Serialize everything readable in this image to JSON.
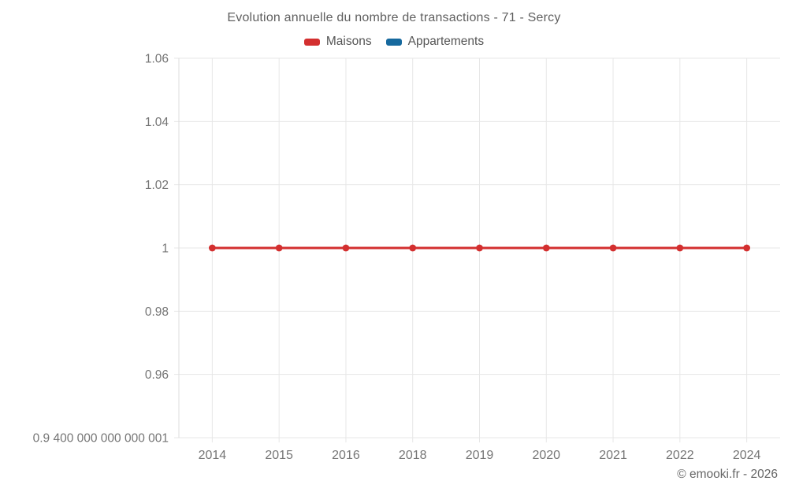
{
  "chart_data": {
    "type": "line",
    "title": "Evolution annuelle du nombre de transactions - 71 - Sercy",
    "categories": [
      "2014",
      "2015",
      "2016",
      "2018",
      "2019",
      "2020",
      "2021",
      "2022",
      "2024"
    ],
    "series": [
      {
        "name": "Maisons",
        "color": "#d32f2f",
        "values": [
          1,
          1,
          1,
          1,
          1,
          1,
          1,
          1,
          1
        ]
      },
      {
        "name": "Appartements",
        "color": "#16699e",
        "values": []
      }
    ],
    "y_axis": {
      "min": 0.9400000000000001,
      "max": 1.06,
      "ticks": [
        {
          "value": 1.06,
          "label": "1.06"
        },
        {
          "value": 1.04,
          "label": "1.04"
        },
        {
          "value": 1.02,
          "label": "1.02"
        },
        {
          "value": 1,
          "label": "1"
        },
        {
          "value": 0.98,
          "label": "0.98"
        },
        {
          "value": 0.96,
          "label": "0.96"
        },
        {
          "value": 0.9400000000000001,
          "label": "0.9 400 000 000 000 001"
        }
      ]
    },
    "xlabel": "",
    "ylabel": "",
    "grid": true,
    "legend_position": "top",
    "watermark": "© emooki.fr - 2026",
    "colors": {
      "grid_line": "#e7e7e7",
      "axis_border": "#dedede",
      "tick_text": "#757575",
      "title_text": "#5f5f5f"
    }
  }
}
